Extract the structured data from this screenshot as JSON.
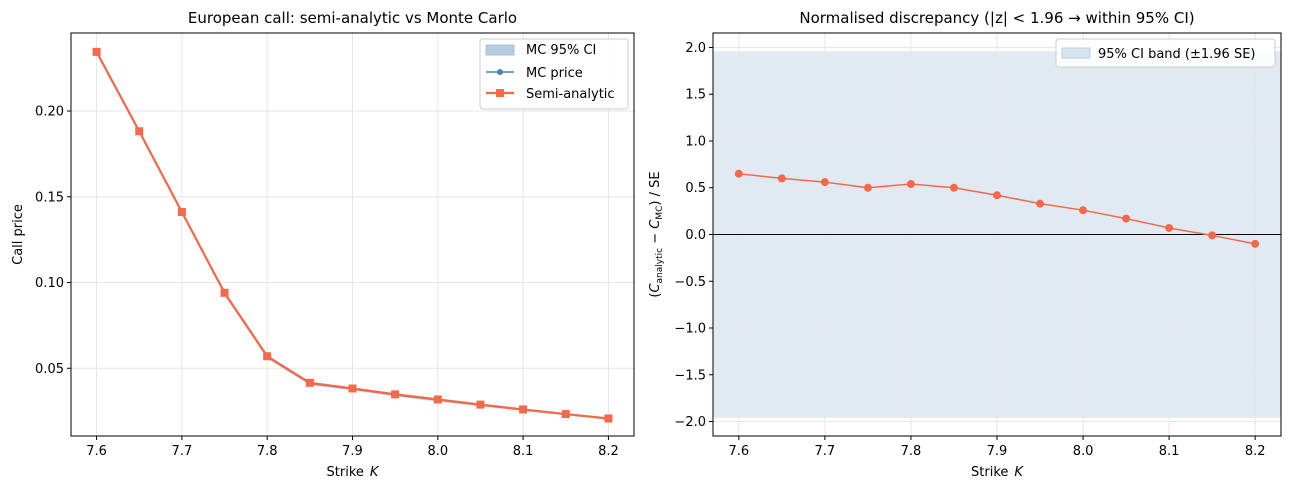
{
  "chart_data": [
    {
      "type": "line",
      "title": "European call: semi-analytic vs Monte Carlo",
      "xlabel": "Strike",
      "xlabel_symbol": "K",
      "ylabel": "Call price",
      "xlim": [
        7.57,
        8.23
      ],
      "ylim": [
        0.0105,
        0.2455
      ],
      "xticks": [
        7.6,
        7.7,
        7.8,
        7.9,
        8.0,
        8.1,
        8.2
      ],
      "xtick_labels": [
        "7.6",
        "7.7",
        "7.8",
        "7.9",
        "8.0",
        "8.1",
        "8.2"
      ],
      "yticks": [
        0.05,
        0.1,
        0.15,
        0.2
      ],
      "ytick_labels": [
        "0.05",
        "0.10",
        "0.15",
        "0.20"
      ],
      "grid": true,
      "legend_placement": "top-right",
      "x": [
        7.6,
        7.65,
        7.7,
        7.75,
        7.8,
        7.85,
        7.9,
        7.95,
        8.0,
        8.05,
        8.1,
        8.15,
        8.2
      ],
      "series": [
        {
          "name": "MC 95% CI",
          "kind": "band",
          "color": "#b7cde3",
          "lower": [
            0.233,
            0.187,
            0.14,
            0.0925,
            0.0555,
            0.04,
            0.037,
            0.0335,
            0.0305,
            0.0278,
            0.025,
            0.0225,
            0.02
          ],
          "upper": [
            0.2355,
            0.189,
            0.1415,
            0.095,
            0.058,
            0.042,
            0.0388,
            0.0355,
            0.0325,
            0.0293,
            0.0265,
            0.0238,
            0.0213
          ]
        },
        {
          "name": "MC price",
          "kind": "line",
          "marker": "circle",
          "color": "#4682b4",
          "values": [
            0.2342,
            0.1879,
            0.1408,
            0.0937,
            0.0567,
            0.0412,
            0.0379,
            0.0345,
            0.0315,
            0.0286,
            0.0258,
            0.0231,
            0.0207
          ]
        },
        {
          "name": "Semi-analytic",
          "kind": "line",
          "marker": "square",
          "color": "#f4694a",
          "values": [
            0.2345,
            0.1882,
            0.1411,
            0.094,
            0.057,
            0.0415,
            0.0382,
            0.0348,
            0.0318,
            0.0288,
            0.026,
            0.0233,
            0.0207
          ]
        }
      ]
    },
    {
      "type": "line",
      "title": "Normalised discrepancy  (|z| < 1.96 → within 95% CI)",
      "xlabel": "Strike",
      "xlabel_symbol": "K",
      "ylabel_parts": {
        "open": "(",
        "c1": "C",
        "s1": "analytic",
        "minus": " − ",
        "c2": "C",
        "s2": "MC",
        "close": ") / SE"
      },
      "xlim": [
        7.57,
        8.23
      ],
      "ylim": [
        -2.155,
        2.155
      ],
      "xticks": [
        7.6,
        7.7,
        7.8,
        7.9,
        8.0,
        8.1,
        8.2
      ],
      "xtick_labels": [
        "7.6",
        "7.7",
        "7.8",
        "7.9",
        "8.0",
        "8.1",
        "8.2"
      ],
      "yticks": [
        -2.0,
        -1.5,
        -1.0,
        -0.5,
        0.0,
        0.5,
        1.0,
        1.5,
        2.0
      ],
      "ytick_labels": [
        "−2.0",
        "−1.5",
        "−1.0",
        "−0.5",
        "0.0",
        "0.5",
        "1.0",
        "1.5",
        "2.0"
      ],
      "grid": true,
      "legend_placement": "top-right",
      "reference_line_y": 0,
      "x": [
        7.6,
        7.65,
        7.7,
        7.75,
        7.8,
        7.85,
        7.9,
        7.95,
        8.0,
        8.05,
        8.1,
        8.15,
        8.2
      ],
      "series": [
        {
          "name": "95% CI band (±1.96 SE)",
          "kind": "band",
          "color": "#c8d8e8",
          "lower_const": -1.96,
          "upper_const": 1.96
        },
        {
          "name": "",
          "kind": "line",
          "marker": "circle",
          "color": "#f4694a",
          "values": [
            0.65,
            0.6,
            0.56,
            0.5,
            0.54,
            0.5,
            0.42,
            0.33,
            0.26,
            0.17,
            0.07,
            -0.01,
            -0.1
          ]
        }
      ]
    }
  ]
}
